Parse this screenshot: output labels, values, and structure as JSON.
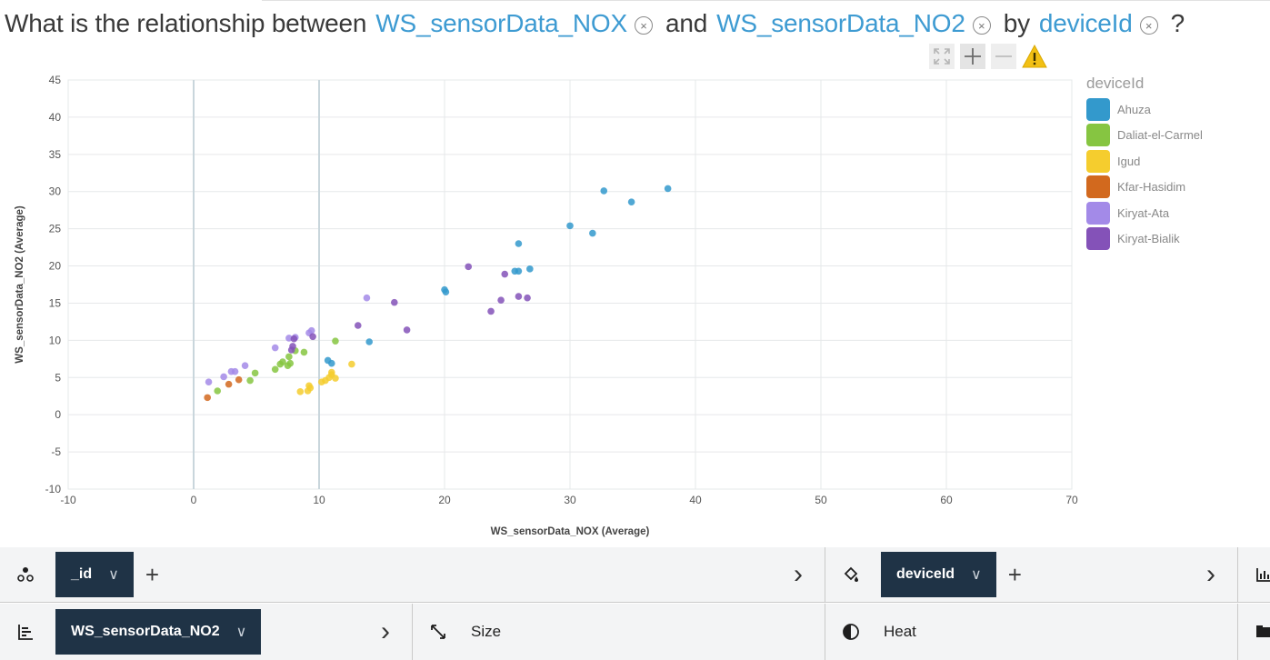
{
  "question": {
    "prefix": "What is the relationship between",
    "field1": "WS_sensorData_NOX",
    "connector": "and",
    "field2": "WS_sensorData_NO2",
    "by": "by",
    "group_field": "deviceId",
    "suffix": "?",
    "remove_symbol": "×"
  },
  "chart_tools": [
    "expand-icon",
    "zoom-in-icon",
    "zoom-out-icon",
    "warning-icon"
  ],
  "chart_data": {
    "type": "scatter",
    "xlabel": "WS_sensorData_NOX (Average)",
    "ylabel": "WS_sensorData_NO2 (Average)",
    "xlim": [
      -10,
      70
    ],
    "ylim": [
      -10,
      45
    ],
    "xticks": [
      -10,
      0,
      10,
      20,
      30,
      40,
      50,
      60,
      70
    ],
    "yticks": [
      -10,
      -5,
      0,
      5,
      10,
      15,
      20,
      25,
      30,
      35,
      40,
      45
    ],
    "grid": true,
    "legend_position": "right",
    "legend_title": "deviceId",
    "series": [
      {
        "name": "Ahuza",
        "color": "#3399cc",
        "points": [
          [
            37.8,
            30.4
          ],
          [
            32.7,
            30.1
          ],
          [
            34.9,
            28.6
          ],
          [
            30.0,
            25.4
          ],
          [
            31.8,
            24.4
          ],
          [
            25.9,
            23.0
          ],
          [
            26.8,
            19.6
          ],
          [
            25.6,
            19.3
          ],
          [
            25.9,
            19.3
          ],
          [
            20.0,
            16.8
          ],
          [
            20.1,
            16.5
          ],
          [
            14.0,
            9.8
          ],
          [
            10.7,
            7.3
          ],
          [
            11.0,
            6.9
          ]
        ]
      },
      {
        "name": "Daliat-el-Carmel",
        "color": "#86c541",
        "points": [
          [
            1.9,
            3.2
          ],
          [
            4.5,
            4.6
          ],
          [
            4.9,
            5.6
          ],
          [
            6.5,
            6.1
          ],
          [
            6.9,
            6.8
          ],
          [
            7.1,
            7.1
          ],
          [
            7.5,
            6.6
          ],
          [
            7.7,
            6.9
          ],
          [
            7.6,
            7.8
          ],
          [
            8.1,
            8.6
          ],
          [
            8.8,
            8.4
          ],
          [
            11.3,
            9.9
          ]
        ]
      },
      {
        "name": "Igud",
        "color": "#f5cd2e",
        "points": [
          [
            8.5,
            3.1
          ],
          [
            9.1,
            3.2
          ],
          [
            9.3,
            3.6
          ],
          [
            9.2,
            3.9
          ],
          [
            10.2,
            4.4
          ],
          [
            10.5,
            4.6
          ],
          [
            10.8,
            5.0
          ],
          [
            11.0,
            5.4
          ],
          [
            11.3,
            4.9
          ],
          [
            11.0,
            5.7
          ],
          [
            12.6,
            6.8
          ]
        ]
      },
      {
        "name": "Kfar-Hasidim",
        "color": "#d2691e",
        "points": [
          [
            1.1,
            2.3
          ],
          [
            2.8,
            4.1
          ],
          [
            3.6,
            4.7
          ]
        ]
      },
      {
        "name": "Kiryat-Ata",
        "color": "#a38ae8",
        "points": [
          [
            1.2,
            4.4
          ],
          [
            2.4,
            5.1
          ],
          [
            3.0,
            5.8
          ],
          [
            3.3,
            5.8
          ],
          [
            4.1,
            6.6
          ],
          [
            6.5,
            9.0
          ],
          [
            7.6,
            10.3
          ],
          [
            8.1,
            10.4
          ],
          [
            9.2,
            11.0
          ],
          [
            9.4,
            11.3
          ],
          [
            13.8,
            15.7
          ]
        ]
      },
      {
        "name": "Kiryat-Bialik",
        "color": "#8452b8",
        "points": [
          [
            7.9,
            9.2
          ],
          [
            7.8,
            8.7
          ],
          [
            8.0,
            10.2
          ],
          [
            9.5,
            10.5
          ],
          [
            13.1,
            12.0
          ],
          [
            16.0,
            15.1
          ],
          [
            17.0,
            11.4
          ],
          [
            21.9,
            19.9
          ],
          [
            24.8,
            18.9
          ],
          [
            23.7,
            13.9
          ],
          [
            24.5,
            15.4
          ],
          [
            25.9,
            15.9
          ],
          [
            26.6,
            15.7
          ]
        ]
      }
    ]
  },
  "shelf": {
    "row1": {
      "points_pill": "_id",
      "color_pill": "deviceId",
      "chevron": "∨",
      "plus": "+",
      "arrow": "›"
    },
    "row2": {
      "y_pill": "WS_sensorData_NO2",
      "size_label": "Size",
      "heat_label": "Heat"
    }
  }
}
